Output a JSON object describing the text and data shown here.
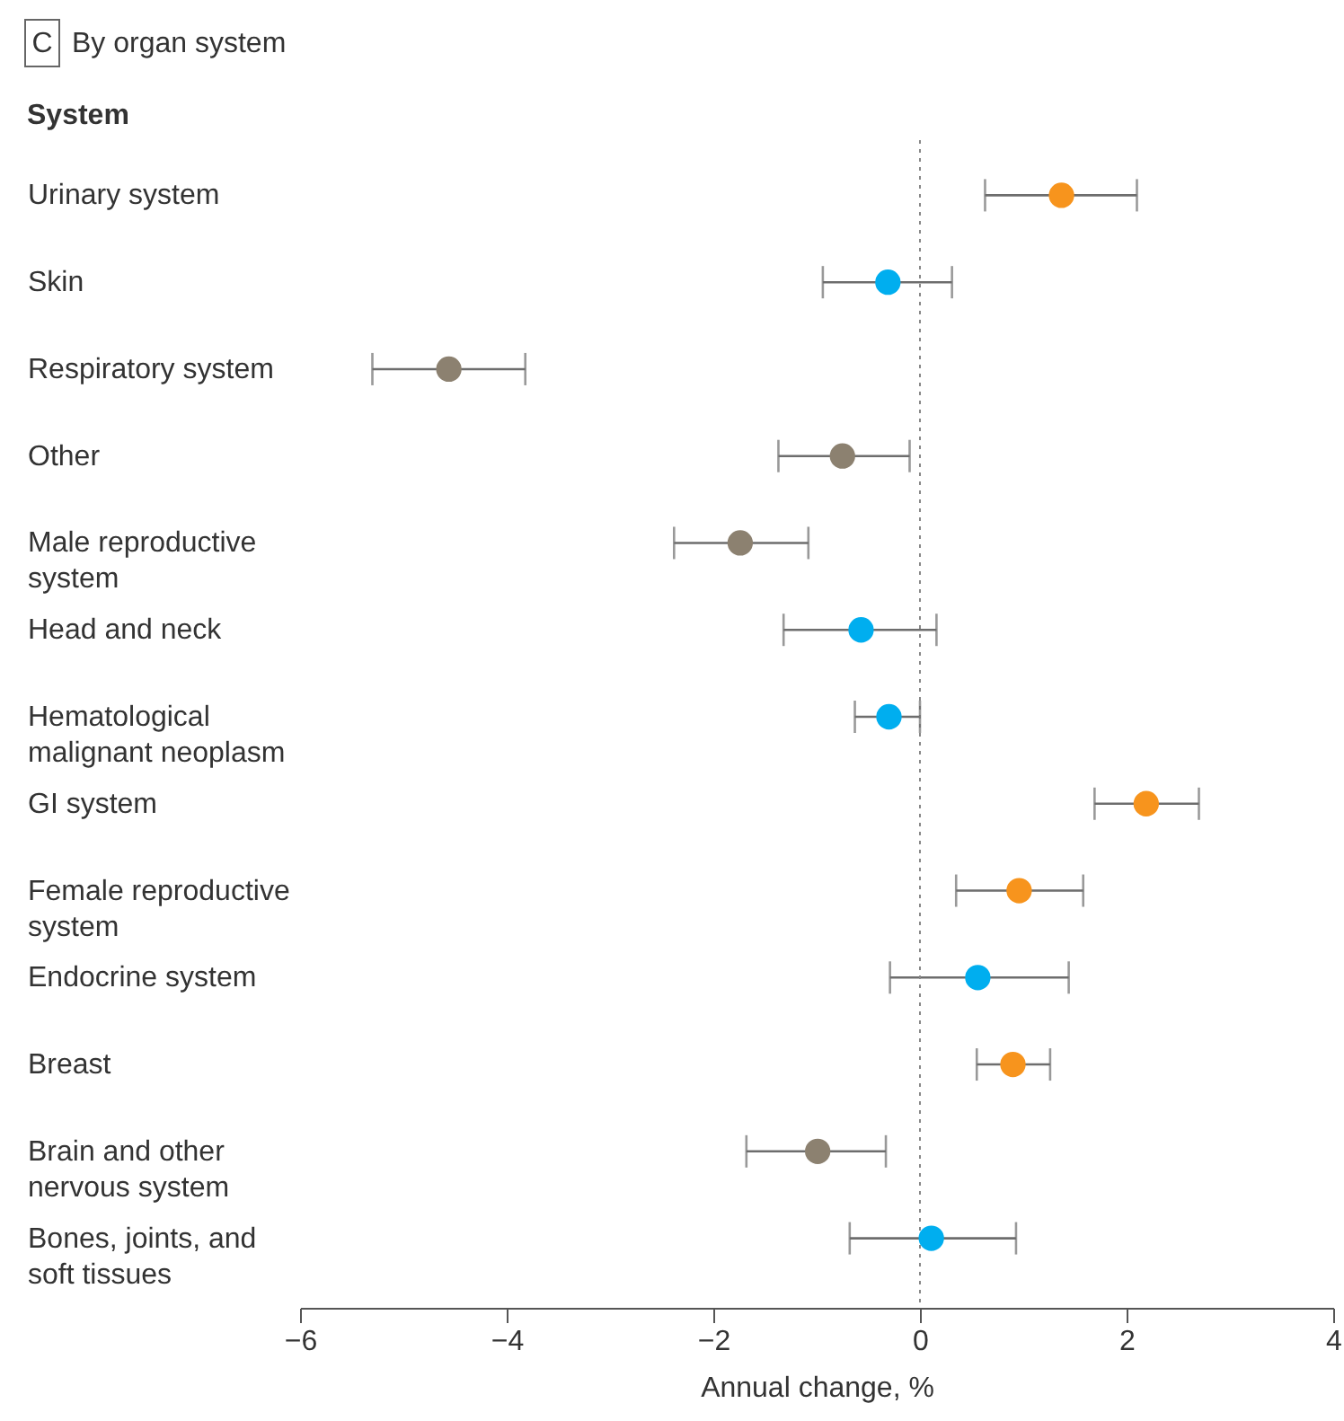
{
  "chart_data": {
    "type": "scatter",
    "title": "By organ system",
    "ylabel": "System",
    "xlabel": "Annual change, %",
    "annotations": [
      "C"
    ],
    "categories": [
      "Urinary system",
      "Skin",
      "Respiratory system",
      "Other",
      "Male reproductive system",
      "Head and neck",
      "Hematological malignant neoplasm",
      "GI system",
      "Female reproductive system",
      "Endocrine system",
      "Breast",
      "Brain and other nervous system",
      "Bones, joints, and soft tissues"
    ],
    "values": [
      1.37,
      -0.31,
      -4.56,
      -0.75,
      -1.74,
      -0.57,
      -0.3,
      2.19,
      0.96,
      0.56,
      0.9,
      -0.99,
      0.11
    ],
    "errors": [
      [
        0.63,
        2.1
      ],
      [
        -0.94,
        0.31
      ],
      [
        -5.3,
        -3.82
      ],
      [
        -1.37,
        -0.1
      ],
      [
        -2.38,
        -1.08
      ],
      [
        -1.32,
        0.16
      ],
      [
        -0.63,
        0.0
      ],
      [
        1.69,
        2.7
      ],
      [
        0.35,
        1.58
      ],
      [
        -0.29,
        1.44
      ],
      [
        0.55,
        1.26
      ],
      [
        -1.68,
        -0.33
      ],
      [
        -0.68,
        0.93
      ]
    ],
    "colors": [
      "#f7941d",
      "#00aeef",
      "#8c8170",
      "#8c8170",
      "#8c8170",
      "#00aeef",
      "#00aeef",
      "#f7941d",
      "#f7941d",
      "#00aeef",
      "#f7941d",
      "#8c8170",
      "#00aeef"
    ],
    "xlim": [
      -6,
      4
    ],
    "xticks": [
      -6,
      -4,
      -2,
      0,
      2,
      4
    ],
    "ref_lines": [
      {
        "axis": "x",
        "value": 0,
        "line_style": "dotted",
        "color": "#888888"
      }
    ],
    "orientation": "horizontal",
    "marker": "circle",
    "grid": false,
    "legend": false
  }
}
